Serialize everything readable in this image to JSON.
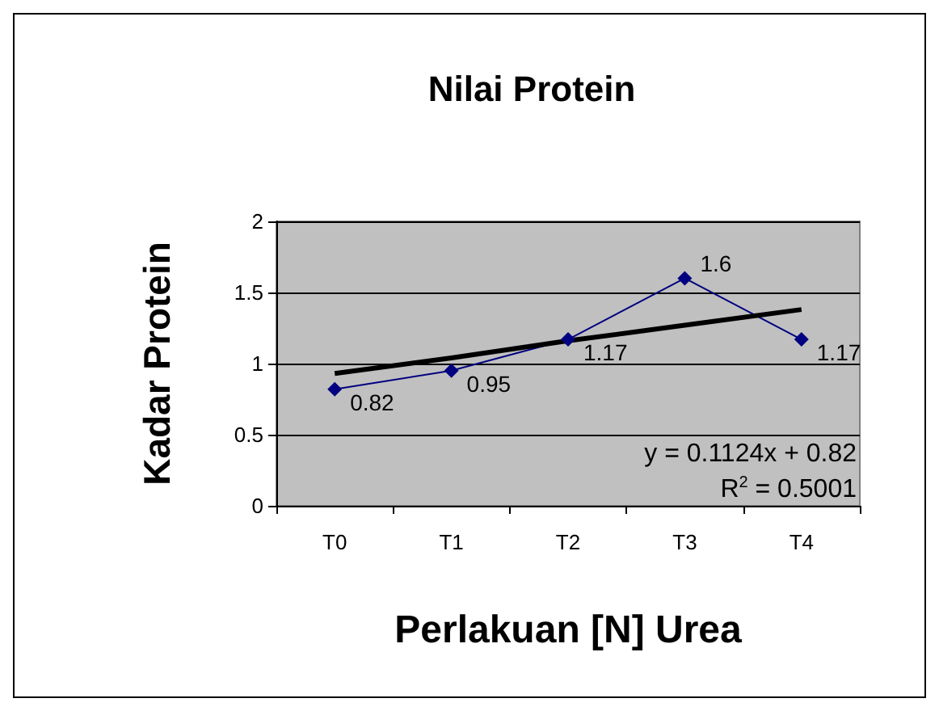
{
  "chart_data": {
    "type": "line",
    "title": "Nilai Protein",
    "xlabel": "Perlakuan [N] Urea",
    "ylabel": "Kadar Protein",
    "categories": [
      "T0",
      "T1",
      "T2",
      "T3",
      "T4"
    ],
    "series": [
      {
        "color": "#000080",
        "values": [
          0.82,
          0.95,
          1.17,
          1.6,
          1.17
        ],
        "marker": "diamond",
        "data_labels": true
      },
      {
        "type": "line",
        "color": "#000000",
        "x": [
          "T0",
          "T1",
          "T2",
          "T3",
          "T4"
        ],
        "values": [
          0.93,
          1.04,
          1.16,
          1.27,
          1.38
        ],
        "marker": "none"
      }
    ],
    "ylim": [
      0,
      2
    ],
    "yticks": [
      0,
      0.5,
      1,
      1.5,
      2
    ],
    "grid": "y",
    "annotations": [
      "y = 0.1124x + 0.82",
      "R$^{2}$ = 0.5001"
    ]
  }
}
